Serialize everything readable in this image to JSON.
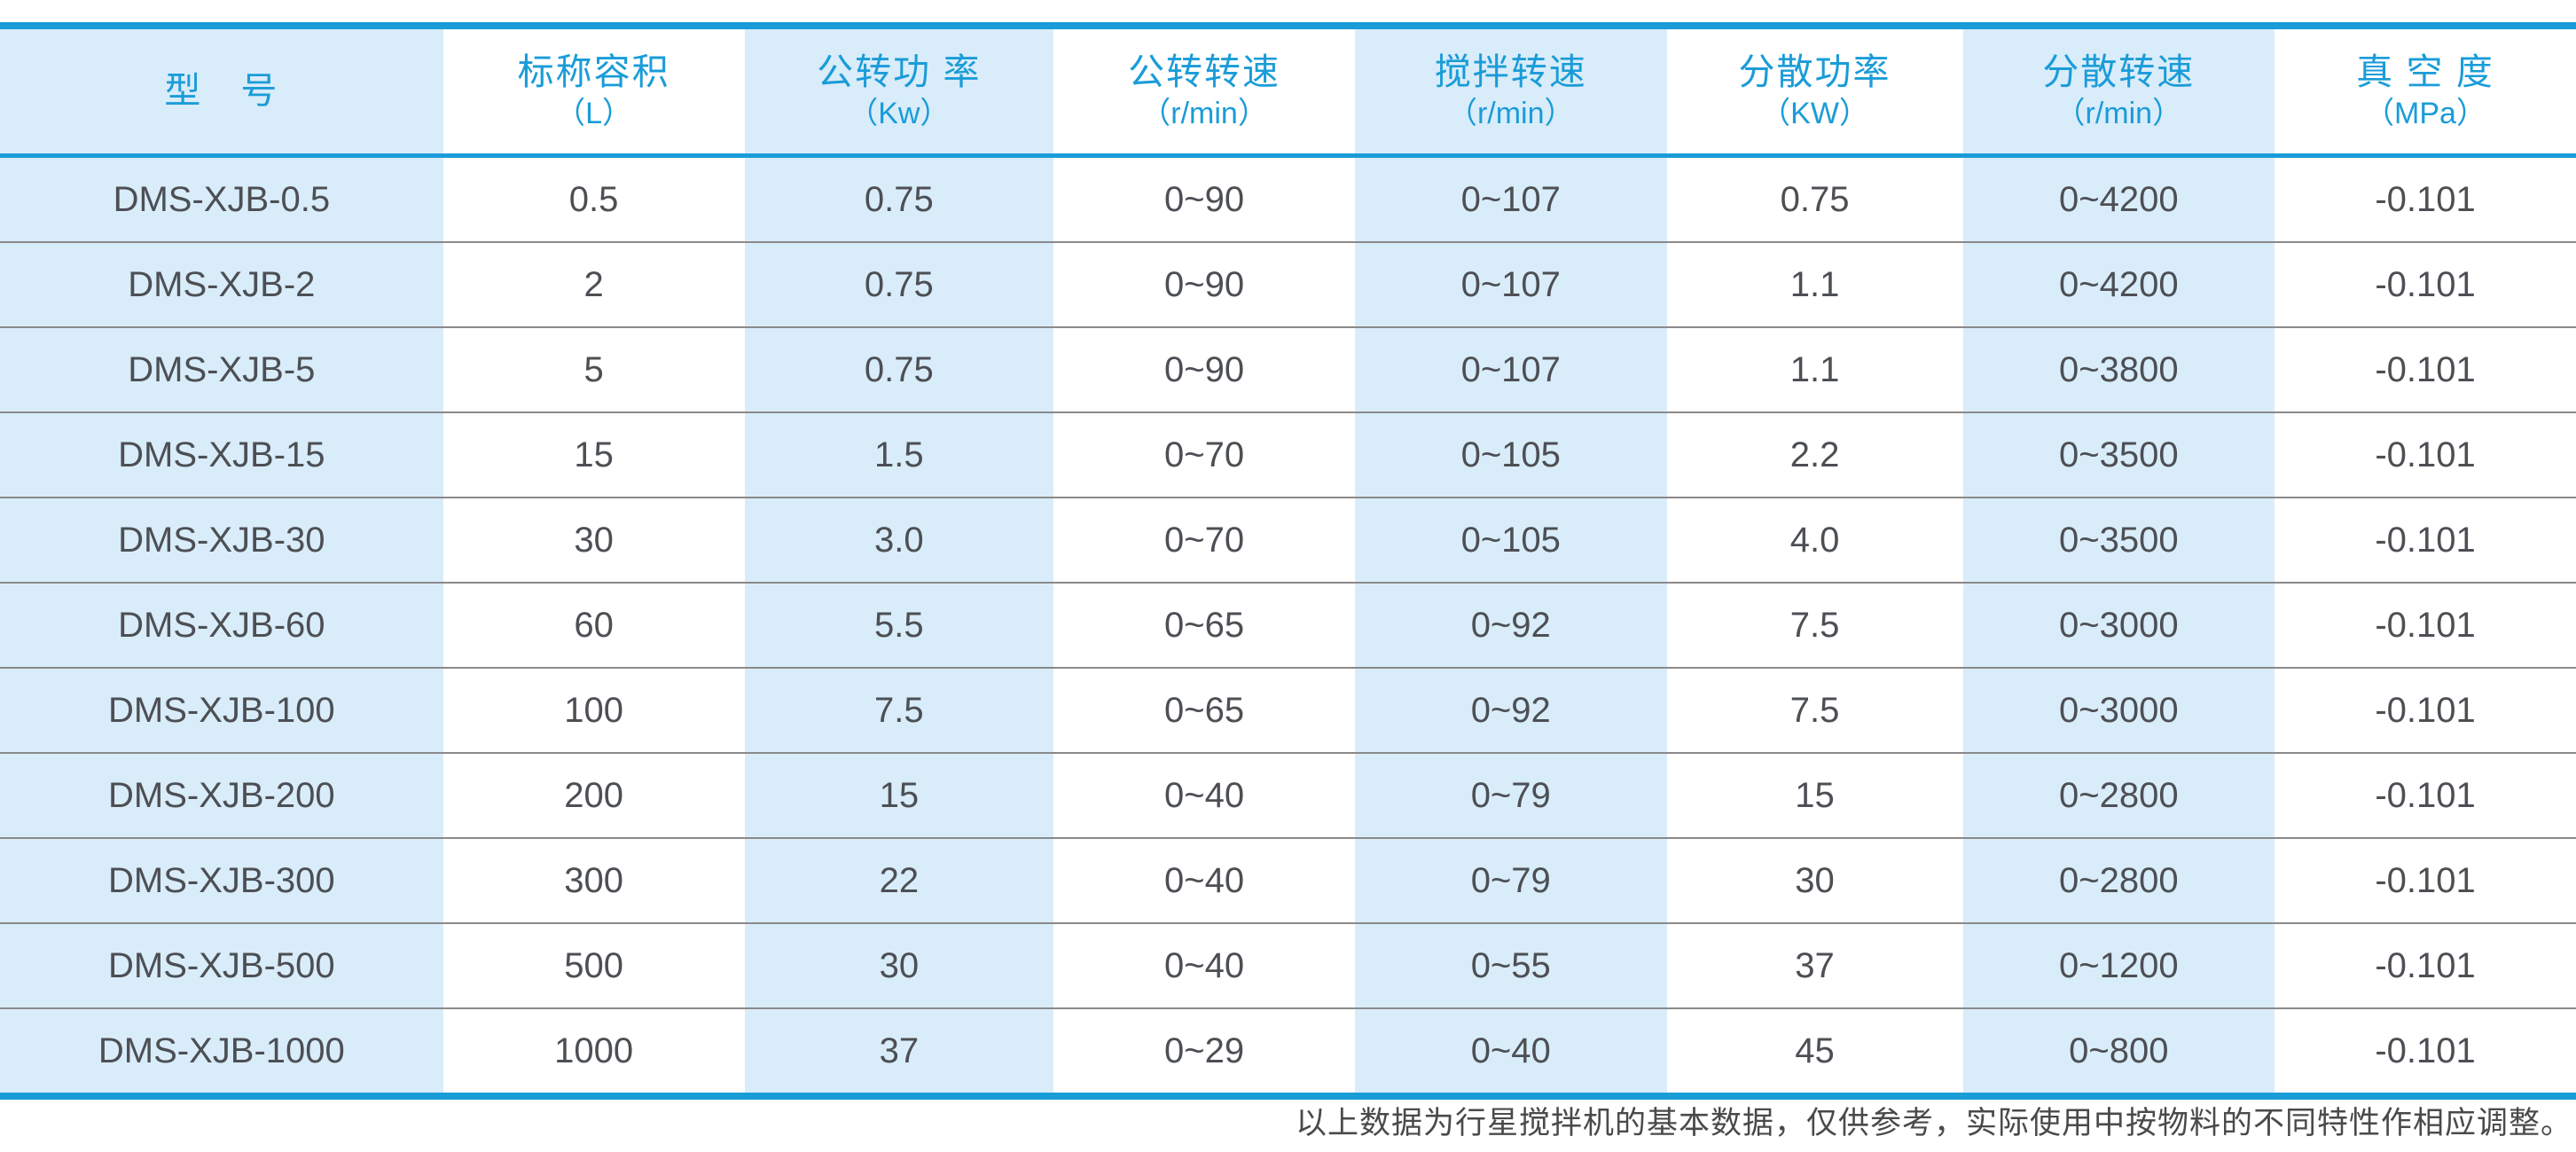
{
  "table": {
    "columns": [
      {
        "label": "型　号",
        "unit": ""
      },
      {
        "label": "标称容积",
        "unit": "（L）"
      },
      {
        "label": "公转功 率",
        "unit": "（Kw）"
      },
      {
        "label": "公转转速",
        "unit": "（r/min）"
      },
      {
        "label": "搅拌转速",
        "unit": "（r/min）"
      },
      {
        "label": "分散功率",
        "unit": "（KW）"
      },
      {
        "label": "分散转速",
        "unit": "（r/min）"
      },
      {
        "label": "真 空 度",
        "unit": "（MPa）"
      }
    ],
    "column_widths_pct": [
      17.2,
      11.7,
      12.0,
      11.7,
      12.1,
      11.5,
      12.1,
      11.7
    ],
    "rows": [
      [
        "DMS-XJB-0.5",
        "0.5",
        "0.75",
        "0~90",
        "0~107",
        "0.75",
        "0~4200",
        "-0.101"
      ],
      [
        "DMS-XJB-2",
        "2",
        "0.75",
        "0~90",
        "0~107",
        "1.1",
        "0~4200",
        "-0.101"
      ],
      [
        "DMS-XJB-5",
        "5",
        "0.75",
        "0~90",
        "0~107",
        "1.1",
        "0~3800",
        "-0.101"
      ],
      [
        "DMS-XJB-15",
        "15",
        "1.5",
        "0~70",
        "0~105",
        "2.2",
        "0~3500",
        "-0.101"
      ],
      [
        "DMS-XJB-30",
        "30",
        "3.0",
        "0~70",
        "0~105",
        "4.0",
        "0~3500",
        "-0.101"
      ],
      [
        "DMS-XJB-60",
        "60",
        "5.5",
        "0~65",
        "0~92",
        "7.5",
        "0~3000",
        "-0.101"
      ],
      [
        "DMS-XJB-100",
        "100",
        "7.5",
        "0~65",
        "0~92",
        "7.5",
        "0~3000",
        "-0.101"
      ],
      [
        "DMS-XJB-200",
        "200",
        "15",
        "0~40",
        "0~79",
        "15",
        "0~2800",
        "-0.101"
      ],
      [
        "DMS-XJB-300",
        "300",
        "22",
        "0~40",
        "0~79",
        "30",
        "0~2800",
        "-0.101"
      ],
      [
        "DMS-XJB-500",
        "500",
        "30",
        "0~40",
        "0~55",
        "37",
        "0~1200",
        "-0.101"
      ],
      [
        "DMS-XJB-1000",
        "1000",
        "37",
        "0~29",
        "0~40",
        "45",
        "0~800",
        "-0.101"
      ]
    ]
  },
  "footer": {
    "note": "以上数据为行星搅拌机的基本数据，仅供参考，实际使用中按物料的不同特性作相应调整。"
  },
  "colors": {
    "accent_blue": "#1a9cd8",
    "light_blue_column": "#d9ecf9",
    "data_text": "#4c4f54",
    "row_separator": "#8a8a8a",
    "footer_text": "#4a4a4a"
  }
}
